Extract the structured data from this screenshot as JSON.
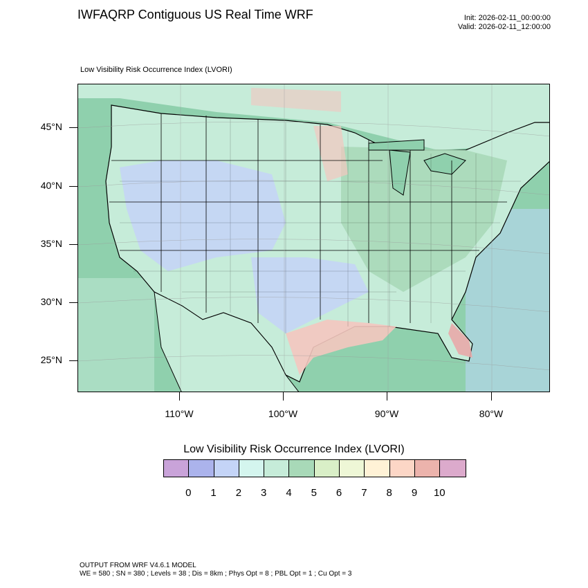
{
  "title": "IWFAQRP Contiguous US Real Time WRF",
  "init_time": "Init: 2026-02-11_00:00:00",
  "valid_time": "Valid: 2026-02-11_12:00:00",
  "subtitle": "Low Visibility Risk Occurrence Index   (LVORI)",
  "map": {
    "lat_labels": [
      "45°N",
      "40°N",
      "35°N",
      "30°N",
      "25°N"
    ],
    "lon_labels": [
      "110°W",
      "100°W",
      "90°W",
      "80°W"
    ],
    "colors": {
      "ocean": "#8fd0ad",
      "land_base": "#c6ecd9",
      "low_risk": "#c4d4f7",
      "moderate": "#a8d9b8",
      "high_risk": "#f4c7bf",
      "very_high": "#e8aaa8",
      "border": "#000000"
    }
  },
  "legend": {
    "title": "Low Visibility Risk Occurrence Index  (LVORI)",
    "colors": [
      "#c9a3d9",
      "#abb3ec",
      "#c4d4f7",
      "#d4f5ee",
      "#c6ecd9",
      "#a8d9b8",
      "#d9efc7",
      "#eef7d6",
      "#fff2d6",
      "#fcd6c6",
      "#ecb3ac",
      "#dcaacc"
    ],
    "labels": [
      "0",
      "1",
      "2",
      "3",
      "4",
      "5",
      "6",
      "7",
      "8",
      "9",
      "10"
    ]
  },
  "footer": {
    "line1": "OUTPUT FROM WRF V4.6.1 MODEL",
    "line2": "WE = 580 ; SN = 380 ; Levels = 38 ; Dis = 8km ; Phys Opt = 8 ; PBL Opt = 1 ; Cu Opt = 3"
  }
}
